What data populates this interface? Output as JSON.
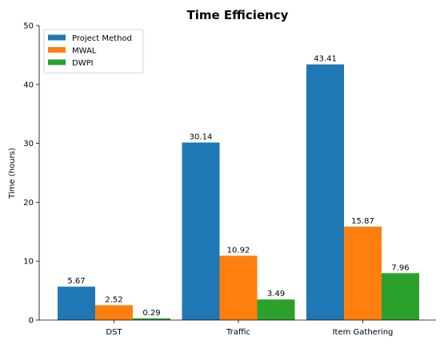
{
  "chart_data": {
    "type": "bar",
    "title": "Time Efficiency",
    "xlabel": "",
    "ylabel": "Time (hours)",
    "ylim": [
      0,
      50
    ],
    "yticks": [
      0,
      10,
      20,
      30,
      40,
      50
    ],
    "categories": [
      "DST",
      "Traffic",
      "Item Gathering"
    ],
    "series": [
      {
        "name": "Project Method",
        "color": "#1f77b4",
        "values": [
          5.67,
          30.14,
          43.41
        ],
        "labels": [
          "5.67",
          "30.14",
          "43.41"
        ]
      },
      {
        "name": "MWAL",
        "color": "#ff7f0e",
        "values": [
          2.52,
          10.92,
          15.87
        ],
        "labels": [
          "2.52",
          "10.92",
          "15.87"
        ]
      },
      {
        "name": "DWPI",
        "color": "#2ca02c",
        "values": [
          0.29,
          3.49,
          7.96
        ],
        "labels": [
          "0.29",
          "3.49",
          "7.96"
        ]
      }
    ],
    "legend_position": "top-left",
    "grid": false
  }
}
